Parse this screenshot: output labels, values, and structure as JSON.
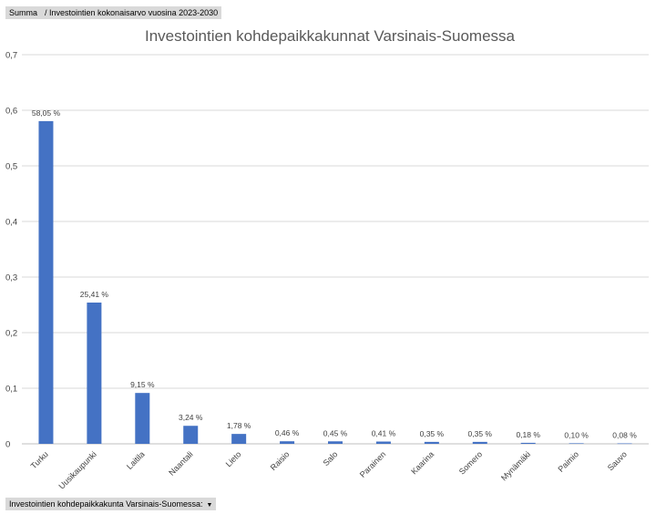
{
  "pivot": {
    "value_field_label": "Summa",
    "value_field_name": "/ Investointien kokonaisarvo vuosina 2023-2030",
    "axis_field_label": "Investointien kohdepaikkakunta Varsinais-Suomessa:",
    "axis_field_dropdown_icon": "dropdown-arrow-icon"
  },
  "colors": {
    "bar": "#4472c4"
  },
  "chart_data": {
    "type": "bar",
    "title": "Investointien kohdepaikkakunnat Varsinais-Suomessa",
    "xlabel": "",
    "ylabel": "",
    "ylim": [
      0,
      0.7
    ],
    "yticks": [
      0,
      0.1,
      0.2,
      0.3,
      0.4,
      0.5,
      0.6,
      0.7
    ],
    "ytick_labels": [
      "0",
      "0,1",
      "0,2",
      "0,3",
      "0,4",
      "0,5",
      "0,6",
      "0,7"
    ],
    "grid": true,
    "categories": [
      "Turku",
      "Uusikaupunki",
      "Laitila",
      "Naantali",
      "Lieto",
      "Raisio",
      "Salo",
      "Parainen",
      "Kaarina",
      "Somero",
      "Mynämäki",
      "Paimio",
      "Sauvo"
    ],
    "values": [
      0.5805,
      0.2541,
      0.0915,
      0.0324,
      0.0178,
      0.0046,
      0.0045,
      0.0041,
      0.0035,
      0.0035,
      0.0018,
      0.001,
      0.0008
    ],
    "data_labels": [
      "58,05 %",
      "25,41 %",
      "9,15 %",
      "3,24 %",
      "1,78 %",
      "0,46 %",
      "0,45 %",
      "0,41 %",
      "0,35 %",
      "0,35 %",
      "0,18 %",
      "0,10 %",
      "0,08 %"
    ]
  }
}
